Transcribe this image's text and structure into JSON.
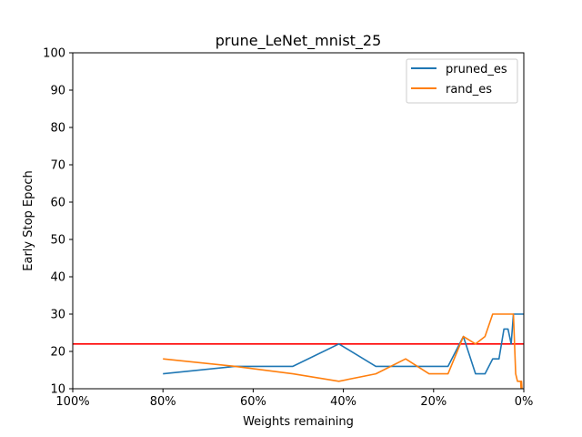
{
  "chart_data": {
    "type": "line",
    "title": "prune_LeNet_mnist_25",
    "xlabel": "Weights remaining",
    "ylabel": "Early Stop Epoch",
    "xlim": [
      100,
      0
    ],
    "ylim": [
      10,
      100
    ],
    "x_ticks": [
      100,
      80,
      60,
      40,
      20,
      0
    ],
    "x_tick_labels": [
      "100%",
      "80%",
      "60%",
      "40%",
      "20%",
      "0%"
    ],
    "y_ticks": [
      10,
      20,
      30,
      40,
      50,
      60,
      70,
      80,
      90,
      100
    ],
    "y_tick_labels": [
      "10",
      "20",
      "30",
      "40",
      "50",
      "60",
      "70",
      "80",
      "90",
      "100"
    ],
    "grid": false,
    "legend_position": "top-right",
    "series": [
      {
        "name": "pruned_es",
        "color": "#1f77b4",
        "x": [
          80,
          64,
          51.2,
          41,
          32.8,
          26.2,
          21,
          16.8,
          13.4,
          10.7,
          8.6,
          6.9,
          5.5,
          4.4,
          3.5,
          2.8,
          2.3,
          1.8,
          1.4,
          1.2,
          0.9,
          0.7,
          0.6,
          0.5,
          0.4,
          0.3,
          0.2,
          0.1
        ],
        "values": [
          14,
          16,
          16,
          22,
          16,
          16,
          16,
          16,
          24,
          14,
          14,
          18,
          18,
          26,
          26,
          22,
          30,
          30,
          30,
          30,
          30,
          30,
          30,
          30,
          30,
          30,
          30,
          30
        ]
      },
      {
        "name": "rand_es",
        "color": "#ff7f0e",
        "x": [
          80,
          64,
          51.2,
          41,
          32.8,
          26.2,
          21,
          16.8,
          13.4,
          10.7,
          8.6,
          6.9,
          5.5,
          4.4,
          3.5,
          2.8,
          2.3,
          1.8,
          1.4,
          1.2,
          0.9,
          0.7,
          0.6,
          0.5,
          0.4,
          0.3
        ],
        "values": [
          18,
          16,
          14,
          12,
          14,
          18,
          14,
          14,
          24,
          22,
          24,
          30,
          30,
          30,
          30,
          30,
          30,
          14,
          12,
          12,
          12,
          12,
          10,
          12,
          10,
          10
        ]
      }
    ],
    "reference_line": {
      "y": 22,
      "color": "#ff0000"
    }
  }
}
